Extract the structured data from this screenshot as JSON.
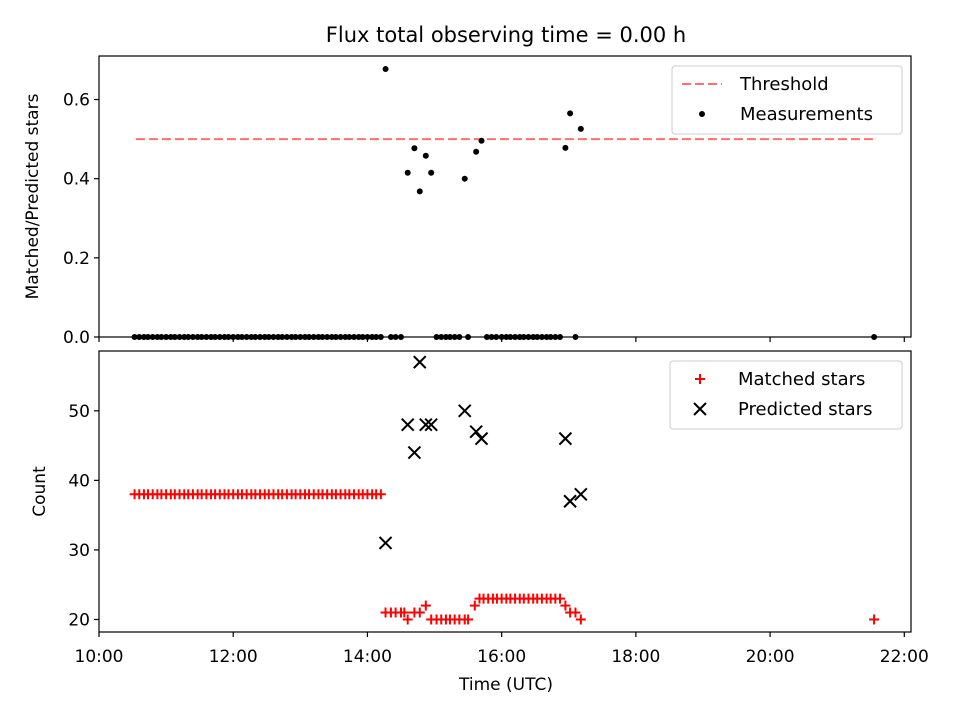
{
  "chart_data": {
    "title": "Flux total observing time = 0.00 h",
    "xlabel": "Time (UTC)",
    "x_unit": "hours (UTC)",
    "xlim": [
      10.0,
      22.1
    ],
    "xticks": [
      {
        "value": 10,
        "label": "10:00"
      },
      {
        "value": 12,
        "label": "12:00"
      },
      {
        "value": 14,
        "label": "14:00"
      },
      {
        "value": 16,
        "label": "16:00"
      },
      {
        "value": 18,
        "label": "18:00"
      },
      {
        "value": 20,
        "label": "20:00"
      },
      {
        "value": 22,
        "label": "22:00"
      }
    ],
    "panels": [
      {
        "id": "ratio",
        "type": "scatter",
        "ylabel": "Matched/Predicted stars",
        "ylim": [
          0,
          0.71
        ],
        "yticks": [
          {
            "value": 0.0,
            "label": "0.0"
          },
          {
            "value": 0.2,
            "label": "0.2"
          },
          {
            "value": 0.4,
            "label": "0.4"
          },
          {
            "value": 0.6,
            "label": "0.6"
          }
        ],
        "show_xtick_labels": false,
        "legend": {
          "location": "upper right",
          "entries": [
            "Threshold",
            "Measurements"
          ]
        },
        "threshold": {
          "name": "Threshold",
          "y": 0.5,
          "x": [
            10.55,
            21.55
          ],
          "color": "#ff7070",
          "style": "dashed"
        },
        "series": [
          {
            "name": "Measurements",
            "marker": "dot",
            "color": "#000000",
            "points": [
              [
                10.53,
                0
              ],
              [
                10.6,
                0
              ],
              [
                10.67,
                0
              ],
              [
                10.73,
                0
              ],
              [
                10.8,
                0
              ],
              [
                10.87,
                0
              ],
              [
                10.93,
                0
              ],
              [
                11.0,
                0
              ],
              [
                11.07,
                0
              ],
              [
                11.13,
                0
              ],
              [
                11.2,
                0
              ],
              [
                11.27,
                0
              ],
              [
                11.33,
                0
              ],
              [
                11.4,
                0
              ],
              [
                11.47,
                0
              ],
              [
                11.53,
                0
              ],
              [
                11.6,
                0
              ],
              [
                11.67,
                0
              ],
              [
                11.73,
                0
              ],
              [
                11.8,
                0
              ],
              [
                11.87,
                0
              ],
              [
                11.93,
                0
              ],
              [
                12.0,
                0
              ],
              [
                12.07,
                0
              ],
              [
                12.13,
                0
              ],
              [
                12.2,
                0
              ],
              [
                12.27,
                0
              ],
              [
                12.33,
                0
              ],
              [
                12.4,
                0
              ],
              [
                12.47,
                0
              ],
              [
                12.53,
                0
              ],
              [
                12.6,
                0
              ],
              [
                12.67,
                0
              ],
              [
                12.73,
                0
              ],
              [
                12.8,
                0
              ],
              [
                12.87,
                0
              ],
              [
                12.93,
                0
              ],
              [
                13.0,
                0
              ],
              [
                13.07,
                0
              ],
              [
                13.13,
                0
              ],
              [
                13.2,
                0
              ],
              [
                13.27,
                0
              ],
              [
                13.33,
                0
              ],
              [
                13.4,
                0
              ],
              [
                13.47,
                0
              ],
              [
                13.53,
                0
              ],
              [
                13.6,
                0
              ],
              [
                13.67,
                0
              ],
              [
                13.73,
                0
              ],
              [
                13.8,
                0
              ],
              [
                13.87,
                0
              ],
              [
                13.93,
                0
              ],
              [
                14.0,
                0
              ],
              [
                14.07,
                0
              ],
              [
                14.13,
                0
              ],
              [
                14.2,
                0
              ],
              [
                14.27,
                0.677
              ],
              [
                14.35,
                0
              ],
              [
                14.42,
                0
              ],
              [
                14.5,
                0
              ],
              [
                14.6,
                0.415
              ],
              [
                14.7,
                0.477
              ],
              [
                14.78,
                0.368
              ],
              [
                14.87,
                0.458
              ],
              [
                14.95,
                0.415
              ],
              [
                15.03,
                0
              ],
              [
                15.1,
                0
              ],
              [
                15.17,
                0
              ],
              [
                15.23,
                0
              ],
              [
                15.3,
                0
              ],
              [
                15.37,
                0
              ],
              [
                15.45,
                0.4
              ],
              [
                15.5,
                0
              ],
              [
                15.62,
                0.468
              ],
              [
                15.7,
                0.496
              ],
              [
                15.78,
                0
              ],
              [
                15.85,
                0
              ],
              [
                15.92,
                0
              ],
              [
                16.0,
                0
              ],
              [
                16.07,
                0
              ],
              [
                16.13,
                0
              ],
              [
                16.2,
                0
              ],
              [
                16.27,
                0
              ],
              [
                16.33,
                0
              ],
              [
                16.4,
                0
              ],
              [
                16.47,
                0
              ],
              [
                16.53,
                0
              ],
              [
                16.6,
                0
              ],
              [
                16.67,
                0
              ],
              [
                16.73,
                0
              ],
              [
                16.8,
                0
              ],
              [
                16.87,
                0
              ],
              [
                16.95,
                0.478
              ],
              [
                17.02,
                0.565
              ],
              [
                17.1,
                0
              ],
              [
                17.18,
                0.526
              ],
              [
                21.55,
                0
              ]
            ]
          }
        ]
      },
      {
        "id": "count",
        "type": "scatter",
        "ylabel": "Count",
        "ylim": [
          18.2,
          58.6
        ],
        "yticks": [
          {
            "value": 20,
            "label": "20"
          },
          {
            "value": 30,
            "label": "30"
          },
          {
            "value": 40,
            "label": "40"
          },
          {
            "value": 50,
            "label": "50"
          }
        ],
        "show_xtick_labels": true,
        "legend": {
          "location": "upper right",
          "entries": [
            "Matched stars",
            "Predicted stars"
          ]
        },
        "series": [
          {
            "name": "Matched stars",
            "marker": "plus",
            "color": "#ff0000",
            "points": [
              [
                10.53,
                38
              ],
              [
                10.6,
                38
              ],
              [
                10.67,
                38
              ],
              [
                10.73,
                38
              ],
              [
                10.8,
                38
              ],
              [
                10.87,
                38
              ],
              [
                10.93,
                38
              ],
              [
                11.0,
                38
              ],
              [
                11.07,
                38
              ],
              [
                11.13,
                38
              ],
              [
                11.2,
                38
              ],
              [
                11.27,
                38
              ],
              [
                11.33,
                38
              ],
              [
                11.4,
                38
              ],
              [
                11.47,
                38
              ],
              [
                11.53,
                38
              ],
              [
                11.6,
                38
              ],
              [
                11.67,
                38
              ],
              [
                11.73,
                38
              ],
              [
                11.8,
                38
              ],
              [
                11.87,
                38
              ],
              [
                11.93,
                38
              ],
              [
                12.0,
                38
              ],
              [
                12.07,
                38
              ],
              [
                12.13,
                38
              ],
              [
                12.2,
                38
              ],
              [
                12.27,
                38
              ],
              [
                12.33,
                38
              ],
              [
                12.4,
                38
              ],
              [
                12.47,
                38
              ],
              [
                12.53,
                38
              ],
              [
                12.6,
                38
              ],
              [
                12.67,
                38
              ],
              [
                12.73,
                38
              ],
              [
                12.8,
                38
              ],
              [
                12.87,
                38
              ],
              [
                12.93,
                38
              ],
              [
                13.0,
                38
              ],
              [
                13.07,
                38
              ],
              [
                13.13,
                38
              ],
              [
                13.2,
                38
              ],
              [
                13.27,
                38
              ],
              [
                13.33,
                38
              ],
              [
                13.4,
                38
              ],
              [
                13.47,
                38
              ],
              [
                13.53,
                38
              ],
              [
                13.6,
                38
              ],
              [
                13.67,
                38
              ],
              [
                13.73,
                38
              ],
              [
                13.8,
                38
              ],
              [
                13.87,
                38
              ],
              [
                13.93,
                38
              ],
              [
                14.0,
                38
              ],
              [
                14.07,
                38
              ],
              [
                14.13,
                38
              ],
              [
                14.2,
                38
              ],
              [
                14.27,
                21
              ],
              [
                14.35,
                21
              ],
              [
                14.42,
                21
              ],
              [
                14.5,
                21
              ],
              [
                14.55,
                21
              ],
              [
                14.6,
                20
              ],
              [
                14.7,
                21
              ],
              [
                14.78,
                21
              ],
              [
                14.87,
                22
              ],
              [
                14.95,
                20
              ],
              [
                15.03,
                20
              ],
              [
                15.1,
                20
              ],
              [
                15.17,
                20
              ],
              [
                15.23,
                20
              ],
              [
                15.3,
                20
              ],
              [
                15.37,
                20
              ],
              [
                15.45,
                20
              ],
              [
                15.5,
                20
              ],
              [
                15.6,
                22
              ],
              [
                15.67,
                23
              ],
              [
                15.73,
                23
              ],
              [
                15.8,
                23
              ],
              [
                15.87,
                23
              ],
              [
                15.93,
                23
              ],
              [
                16.0,
                23
              ],
              [
                16.07,
                23
              ],
              [
                16.13,
                23
              ],
              [
                16.2,
                23
              ],
              [
                16.27,
                23
              ],
              [
                16.33,
                23
              ],
              [
                16.4,
                23
              ],
              [
                16.47,
                23
              ],
              [
                16.53,
                23
              ],
              [
                16.6,
                23
              ],
              [
                16.67,
                23
              ],
              [
                16.73,
                23
              ],
              [
                16.8,
                23
              ],
              [
                16.87,
                23
              ],
              [
                16.95,
                22
              ],
              [
                17.02,
                21
              ],
              [
                17.1,
                21
              ],
              [
                17.18,
                20
              ],
              [
                21.55,
                20
              ]
            ]
          },
          {
            "name": "Predicted stars",
            "marker": "x",
            "color": "#000000",
            "points": [
              [
                14.27,
                31
              ],
              [
                14.6,
                48
              ],
              [
                14.7,
                44
              ],
              [
                14.78,
                57
              ],
              [
                14.87,
                48
              ],
              [
                14.95,
                48
              ],
              [
                15.45,
                50
              ],
              [
                15.62,
                47
              ],
              [
                15.7,
                46
              ],
              [
                16.95,
                46
              ],
              [
                17.02,
                37
              ],
              [
                17.18,
                38
              ]
            ]
          }
        ]
      }
    ]
  }
}
